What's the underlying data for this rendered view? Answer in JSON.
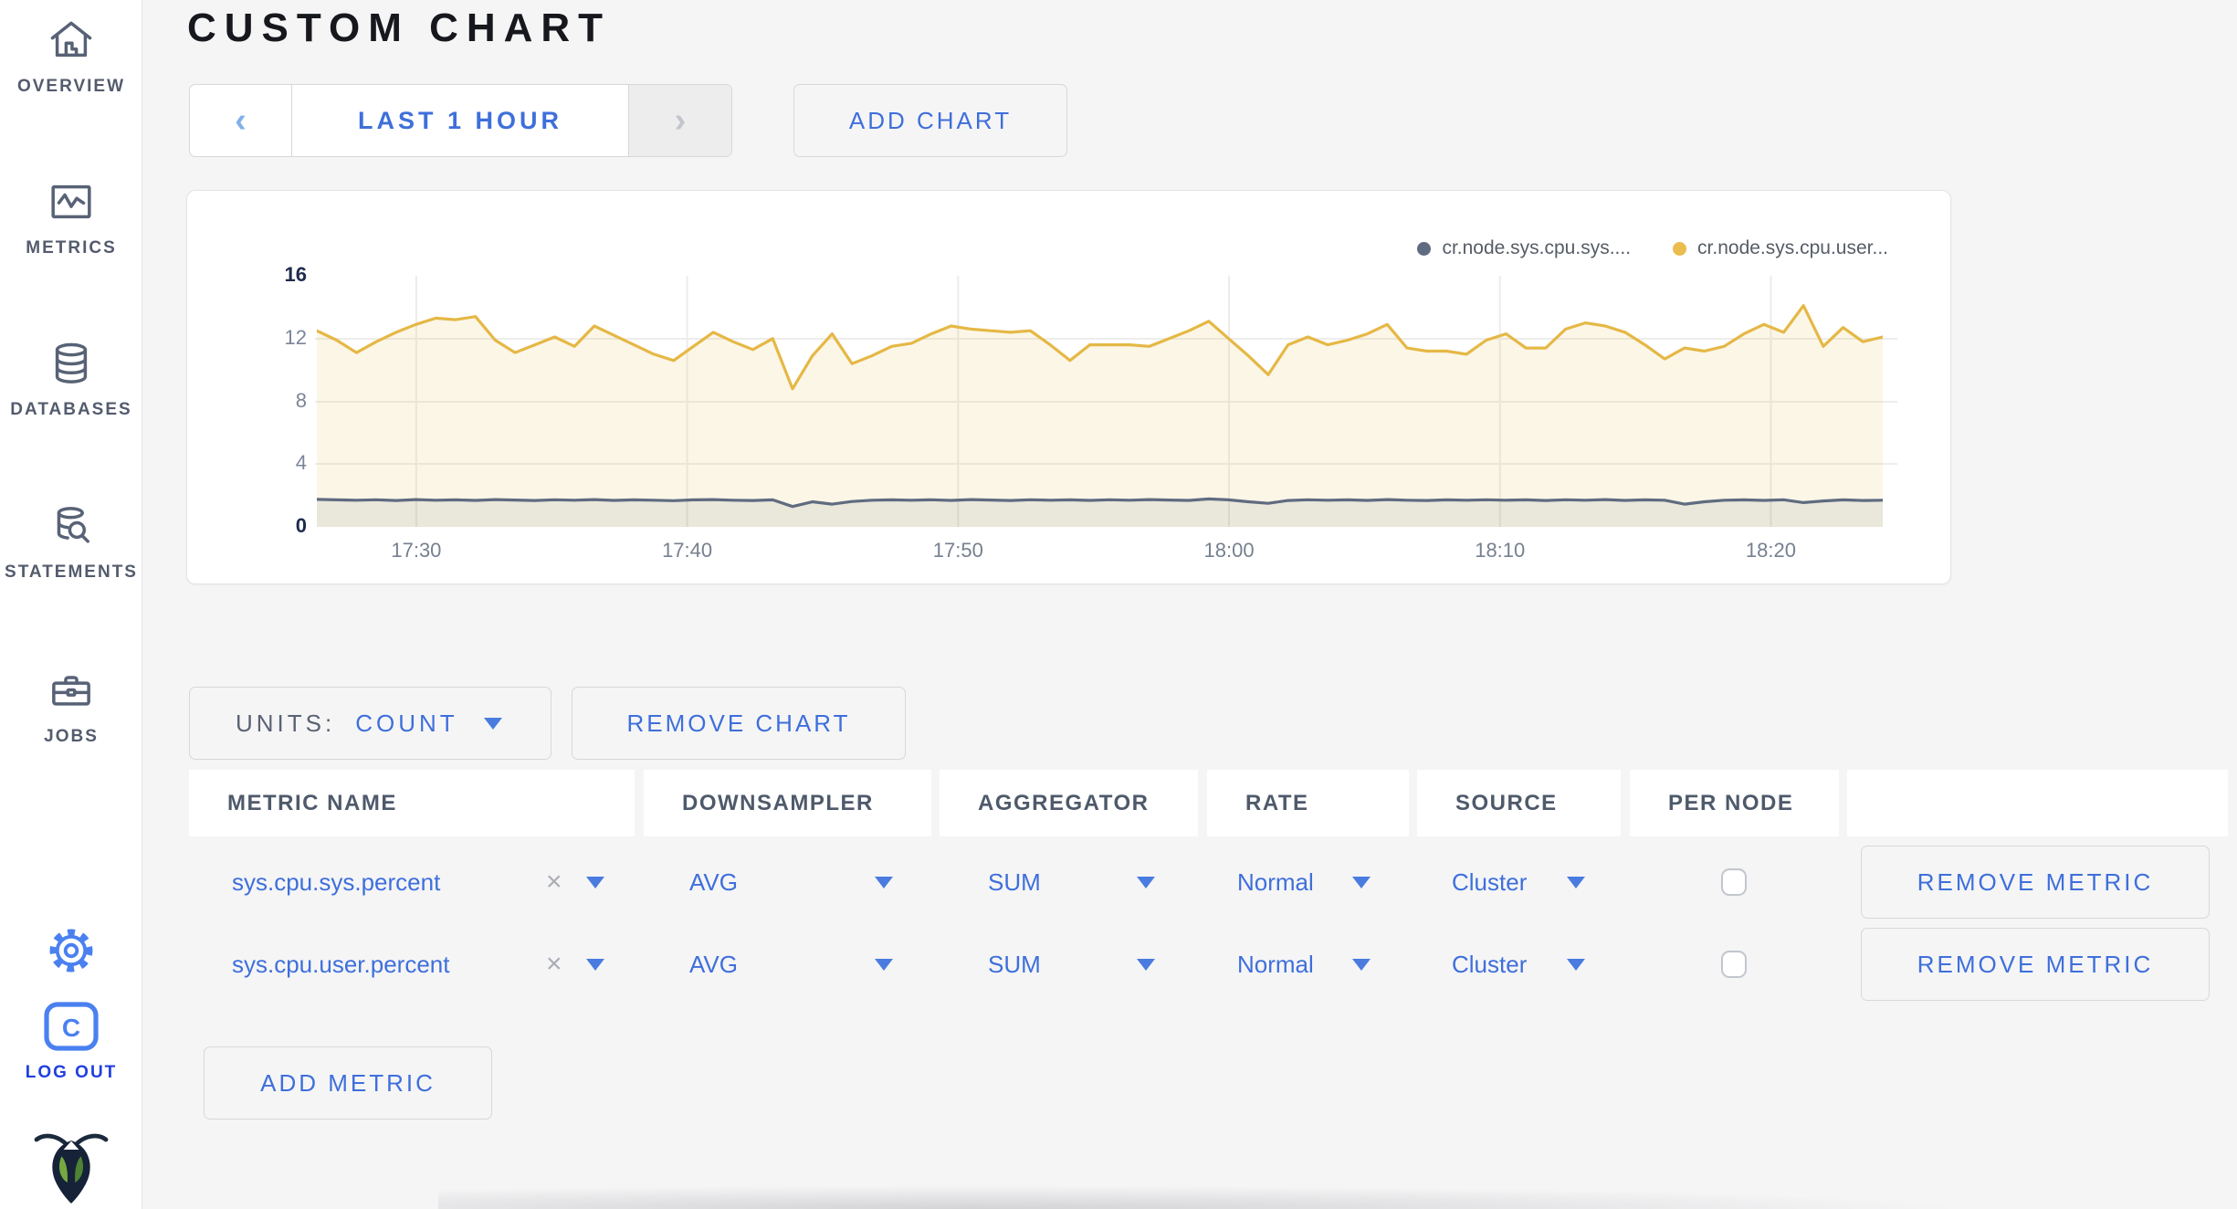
{
  "app": {
    "accent_blue": "#3E6FDB",
    "page_bg": "#F5F5F6",
    "slate": "#535B6D"
  },
  "sidebar": {
    "items": [
      {
        "label": "OVERVIEW",
        "icon": "home-icon"
      },
      {
        "label": "METRICS",
        "icon": "metrics-chart-icon"
      },
      {
        "label": "DATABASES",
        "icon": "database-icon"
      },
      {
        "label": "STATEMENTS",
        "icon": "statements-search-icon"
      },
      {
        "label": "JOBS",
        "icon": "jobs-briefcase-icon"
      }
    ],
    "logout_label": "LOG OUT"
  },
  "header": {
    "title": "CUSTOM CHART"
  },
  "timewindow": {
    "prev": "‹",
    "label": "LAST 1 HOUR",
    "next": "›"
  },
  "buttons": {
    "add_chart": "ADD CHART",
    "remove_chart": "REMOVE CHART",
    "add_metric": "ADD METRIC",
    "remove_metric": "REMOVE METRIC",
    "units_label": "UNITS:",
    "units_value": "COUNT"
  },
  "chart_data": {
    "type": "line",
    "title": "",
    "grid": true,
    "legend_position": "top-right",
    "ylim": [
      0,
      16
    ],
    "y_ticks": [
      0,
      4,
      8,
      12,
      16
    ],
    "y_gridlines": [
      4,
      8,
      12
    ],
    "x_domain_minutes": [
      0,
      57.8
    ],
    "x_ticks": [
      {
        "pos": 3.67,
        "label": "17:30"
      },
      {
        "pos": 13.67,
        "label": "17:40"
      },
      {
        "pos": 23.67,
        "label": "17:50"
      },
      {
        "pos": 33.67,
        "label": "18:00"
      },
      {
        "pos": 43.67,
        "label": "18:10"
      },
      {
        "pos": 53.67,
        "label": "18:20"
      }
    ],
    "series": [
      {
        "name": "cr.node.sys.cpu.sys....",
        "color": "#5F6B80",
        "fill": "rgba(95,107,128,0.11)",
        "values": [
          1.75,
          1.72,
          1.7,
          1.73,
          1.68,
          1.74,
          1.7,
          1.72,
          1.69,
          1.74,
          1.71,
          1.68,
          1.73,
          1.7,
          1.74,
          1.69,
          1.72,
          1.7,
          1.67,
          1.72,
          1.74,
          1.7,
          1.68,
          1.72,
          1.3,
          1.6,
          1.45,
          1.62,
          1.7,
          1.72,
          1.7,
          1.73,
          1.69,
          1.74,
          1.71,
          1.68,
          1.73,
          1.7,
          1.72,
          1.69,
          1.73,
          1.7,
          1.74,
          1.71,
          1.69,
          1.78,
          1.72,
          1.6,
          1.5,
          1.68,
          1.73,
          1.7,
          1.72,
          1.69,
          1.74,
          1.7,
          1.68,
          1.72,
          1.7,
          1.73,
          1.7,
          1.72,
          1.68,
          1.73,
          1.7,
          1.74,
          1.69,
          1.72,
          1.7,
          1.45,
          1.6,
          1.7,
          1.72,
          1.69,
          1.73,
          1.55,
          1.65,
          1.72,
          1.68,
          1.7
        ]
      },
      {
        "name": "cr.node.sys.cpu.user...",
        "color": "#E5B845",
        "fill": "rgba(233,188,70,0.13)",
        "values": [
          12.5,
          11.9,
          11.1,
          11.8,
          12.4,
          12.9,
          13.3,
          13.2,
          13.4,
          11.9,
          11.1,
          11.6,
          12.1,
          11.5,
          12.8,
          12.2,
          11.6,
          11.0,
          10.6,
          11.5,
          12.4,
          11.8,
          11.3,
          12.0,
          8.8,
          10.9,
          12.3,
          10.4,
          10.9,
          11.5,
          11.7,
          12.3,
          12.8,
          12.6,
          12.5,
          12.4,
          12.5,
          11.6,
          10.6,
          11.6,
          11.6,
          11.6,
          11.5,
          12.0,
          12.5,
          13.1,
          12.0,
          10.9,
          9.7,
          11.6,
          12.1,
          11.6,
          11.9,
          12.3,
          12.9,
          11.4,
          11.2,
          11.2,
          11.0,
          11.9,
          12.3,
          11.4,
          11.4,
          12.6,
          13.0,
          12.8,
          12.4,
          11.6,
          10.7,
          11.4,
          11.2,
          11.5,
          12.3,
          12.9,
          12.4,
          14.1,
          11.5,
          12.7,
          11.8,
          12.1
        ]
      }
    ]
  },
  "table": {
    "columns": [
      "METRIC NAME",
      "DOWNSAMPLER",
      "AGGREGATOR",
      "RATE",
      "SOURCE",
      "PER NODE",
      ""
    ],
    "rows": [
      {
        "metric": "sys.cpu.sys.percent",
        "clear": "×",
        "downsampler": "AVG",
        "aggregator": "SUM",
        "rate": "Normal",
        "source": "Cluster",
        "per_node": false
      },
      {
        "metric": "sys.cpu.user.percent",
        "clear": "×",
        "downsampler": "AVG",
        "aggregator": "SUM",
        "rate": "Normal",
        "source": "Cluster",
        "per_node": false
      }
    ]
  }
}
